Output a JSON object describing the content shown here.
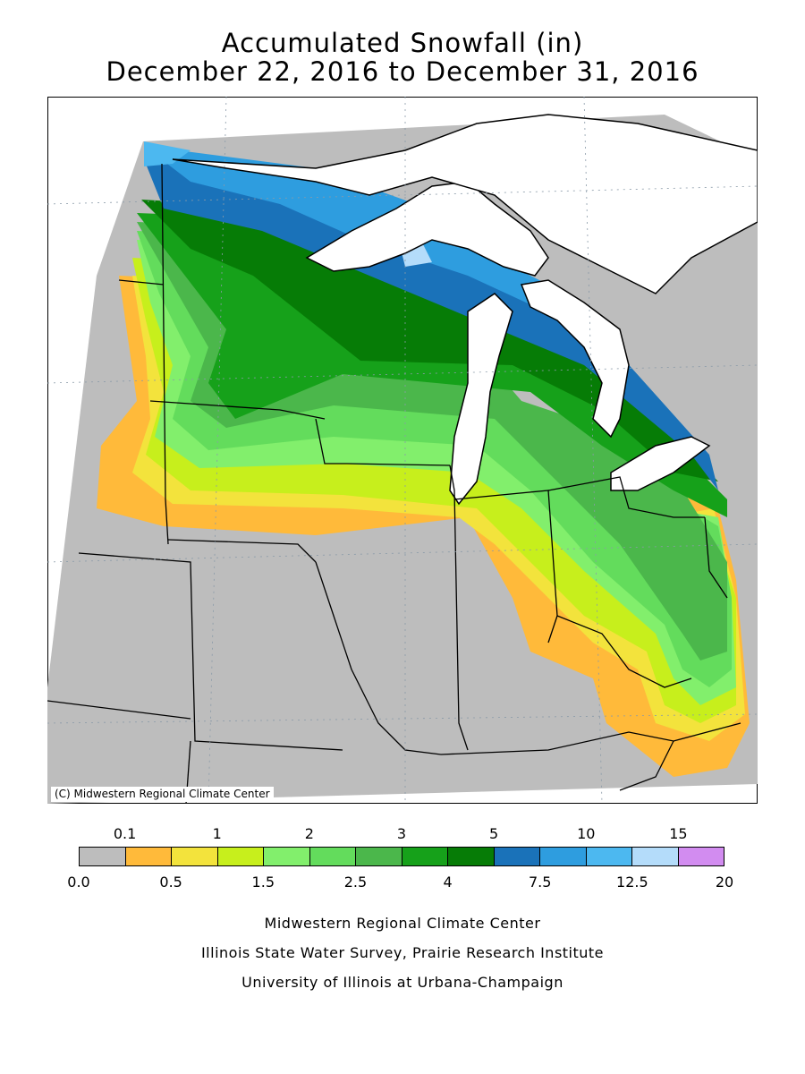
{
  "title": {
    "line1": "Accumulated Snowfall (in)",
    "line2": "December 22, 2016 to December 31, 2016"
  },
  "map": {
    "credit": "(C) Midwestern Regional Climate Center",
    "background_color": "#b8b8b8",
    "lake_color": "#ffffff",
    "border_color": "#000000"
  },
  "legend": {
    "colors": [
      "#bdbdbd",
      "#ffba3a",
      "#f3e33c",
      "#c7ef1c",
      "#82ef6c",
      "#63dc5c",
      "#4bb74b",
      "#16a11a",
      "#067c06",
      "#1a72b9",
      "#2e9ddf",
      "#4cb8f0",
      "#b4dcfa",
      "#d28cf0"
    ],
    "top_labels": [
      "0.1",
      "1",
      "2",
      "3",
      "5",
      "10",
      "15"
    ],
    "bottom_labels": [
      "0.0",
      "0.5",
      "1.5",
      "2.5",
      "4",
      "7.5",
      "12.5",
      "20"
    ]
  },
  "footer": {
    "line1": "Midwestern Regional Climate Center",
    "line2": "Illinois State Water Survey, Prairie Research Institute",
    "line3": "University of Illinois at Urbana-Champaign"
  }
}
